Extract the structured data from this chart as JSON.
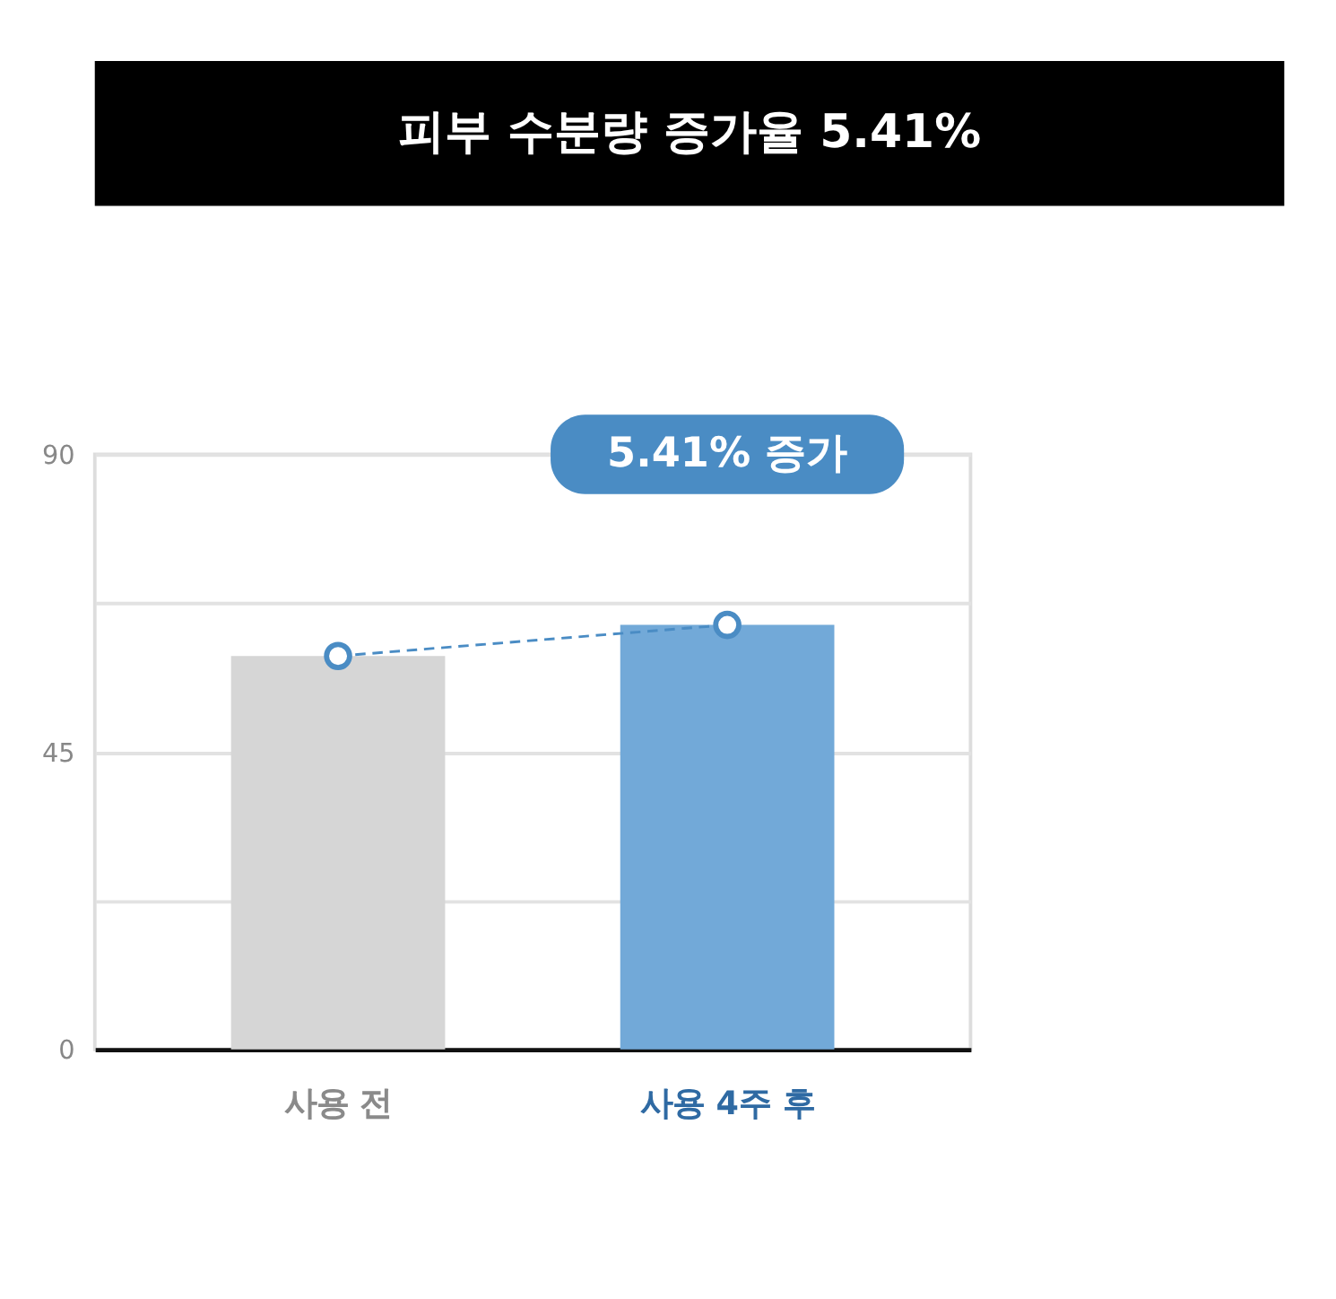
{
  "chart_data": {
    "type": "bar",
    "title": "피부 수분량 증가율 5.41%",
    "categories": [
      "사용 전",
      "사용 4주 후"
    ],
    "series": [
      {
        "colors": [
          "#d6d6d6",
          "#72a9d8"
        ],
        "values": [
          59.5,
          64.2
        ]
      },
      {
        "type": "line",
        "color": "#4a8cc4",
        "values": [
          59.5,
          64.2
        ],
        "marker": "circle",
        "line_style": "dashed"
      }
    ],
    "annotations": [
      "5.41% 증가"
    ],
    "ylim": [
      0,
      90
    ],
    "yticks": [
      0,
      {
        "value": 22.5,
        "label": null
      },
      45,
      {
        "value": 67.5,
        "label": null
      },
      90
    ],
    "grid": true
  }
}
